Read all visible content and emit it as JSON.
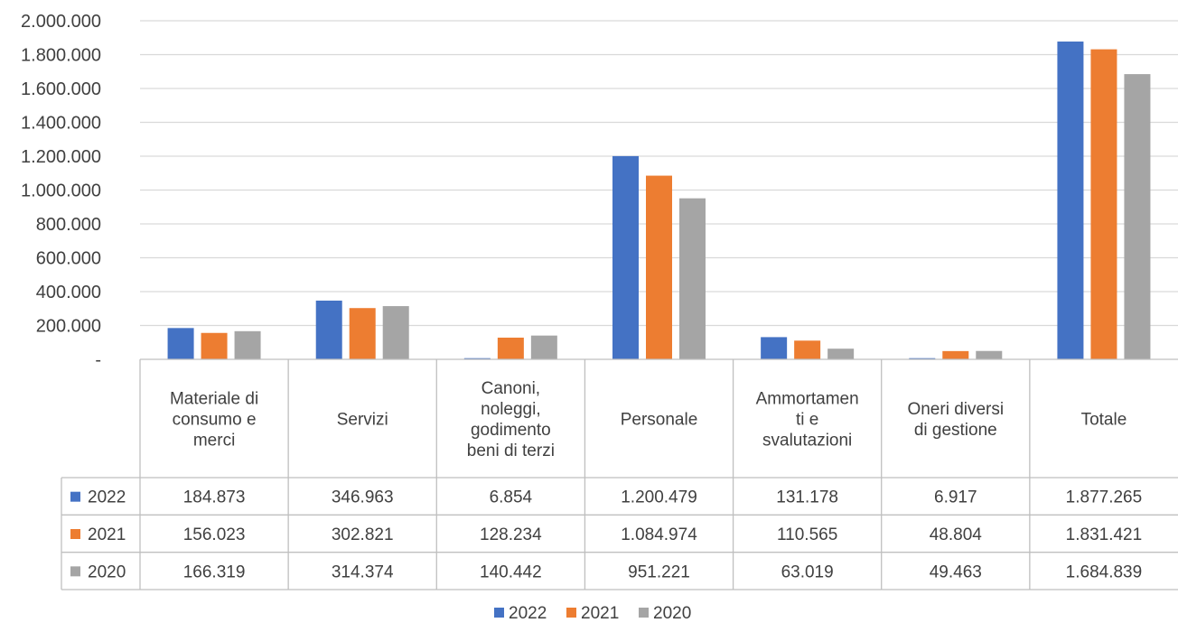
{
  "chart_data": {
    "type": "bar",
    "categories": [
      [
        "Materiale di",
        "consumo e",
        "merci"
      ],
      [
        "Servizi"
      ],
      [
        "Canoni,",
        "noleggi,",
        "godimento",
        "beni di terzi"
      ],
      [
        "Personale"
      ],
      [
        "Ammortamen",
        "ti e",
        "svalutazioni"
      ],
      [
        "Oneri diversi",
        "di gestione"
      ],
      [
        "Totale"
      ]
    ],
    "series": [
      {
        "name": "2022",
        "color": "#4472C4",
        "values": [
          184873,
          346963,
          6854,
          1200479,
          131178,
          6917,
          1877265
        ],
        "labels": [
          "184.873",
          "346.963",
          "6.854",
          "1.200.479",
          "131.178",
          "6.917",
          "1.877.265"
        ]
      },
      {
        "name": "2021",
        "color": "#ED7D31",
        "values": [
          156023,
          302821,
          128234,
          1084974,
          110565,
          48804,
          1831421
        ],
        "labels": [
          "156.023",
          "302.821",
          "128.234",
          "1.084.974",
          "110.565",
          "48.804",
          "1.831.421"
        ]
      },
      {
        "name": "2020",
        "color": "#A5A5A5",
        "values": [
          166319,
          314374,
          140442,
          951221,
          63019,
          49463,
          1684839
        ],
        "labels": [
          "166.319",
          "314.374",
          "140.442",
          "951.221",
          "63.019",
          "49.463",
          "1.684.839"
        ]
      }
    ],
    "y_ticks": [
      {
        "value": 0,
        "label": "-"
      },
      {
        "value": 200000,
        "label": "200.000"
      },
      {
        "value": 400000,
        "label": "400.000"
      },
      {
        "value": 600000,
        "label": "600.000"
      },
      {
        "value": 800000,
        "label": "800.000"
      },
      {
        "value": 1000000,
        "label": "1.000.000"
      },
      {
        "value": 1200000,
        "label": "1.200.000"
      },
      {
        "value": 1400000,
        "label": "1.400.000"
      },
      {
        "value": 1600000,
        "label": "1.600.000"
      },
      {
        "value": 1800000,
        "label": "1.800.000"
      },
      {
        "value": 2000000,
        "label": "2.000.000"
      }
    ],
    "ylim": [
      0,
      2000000
    ],
    "grid": true,
    "legend": "bottom",
    "data_table": true,
    "title": "",
    "xlabel": "",
    "ylabel": ""
  }
}
